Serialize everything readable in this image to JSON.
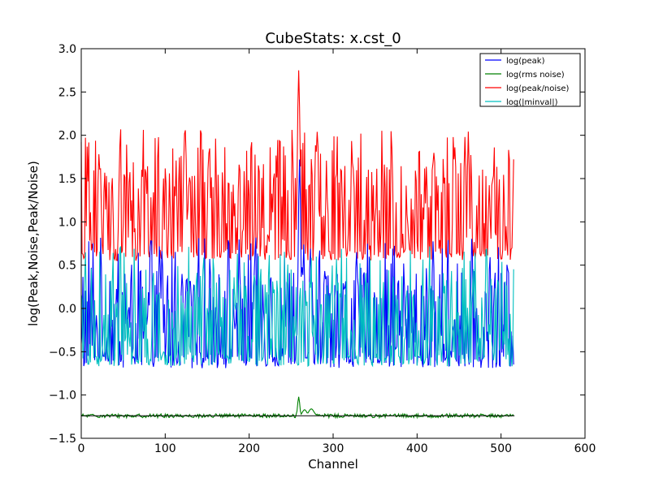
{
  "chart_data": {
    "type": "line",
    "title": "CubeStats: x.cst_0",
    "xlabel": "Channel",
    "ylabel": "log(Peak,Noise,Peak/Noise)",
    "xlim": [
      0,
      600
    ],
    "ylim": [
      -1.5,
      3.0
    ],
    "xticks": [
      0,
      100,
      200,
      300,
      400,
      500,
      600
    ],
    "yticks": [
      -1.5,
      -1.0,
      -0.5,
      0.0,
      0.5,
      1.0,
      1.5,
      2.0,
      2.5,
      3.0
    ],
    "xtick_labels": [
      "0",
      "100",
      "200",
      "300",
      "400",
      "500",
      "600"
    ],
    "ytick_labels": [
      "−1.5",
      "−1.0",
      "−0.5",
      "0.0",
      "0.5",
      "1.0",
      "1.5",
      "2.0",
      "2.5",
      "3.0"
    ],
    "grid": false,
    "legend_position": "top-right",
    "n_channels": 516,
    "series": [
      {
        "name": "log(peak)",
        "color": "#0000ff",
        "profile": "noise",
        "baseline": -0.62,
        "range": [
          -0.75,
          0.82
        ],
        "features": [
          {
            "x": 260,
            "peak": 1.72,
            "width": 1.5
          }
        ]
      },
      {
        "name": "log(rms noise)",
        "color": "#008000",
        "profile": "flat",
        "baseline": -1.24,
        "range": [
          -1.29,
          -1.21
        ],
        "features": [
          {
            "x": 259,
            "peak": -1.02,
            "width": 1.2
          },
          {
            "x": 266,
            "peak": -1.17,
            "width": 2.5
          },
          {
            "x": 274,
            "peak": -1.16,
            "width": 3.0
          }
        ]
      },
      {
        "name": "log(peak/noise)",
        "color": "#ff0000",
        "profile": "noise",
        "baseline": 0.62,
        "range": [
          0.5,
          2.07
        ],
        "features": [
          {
            "x": 259,
            "peak": 2.75,
            "width": 1.5
          }
        ]
      },
      {
        "name": "log(|minval|)",
        "color": "#00bfbf",
        "profile": "noise",
        "baseline": -0.6,
        "range": [
          -0.82,
          0.72
        ],
        "features": []
      }
    ],
    "reference_line": {
      "y": -1.24,
      "color": "#000000"
    }
  }
}
